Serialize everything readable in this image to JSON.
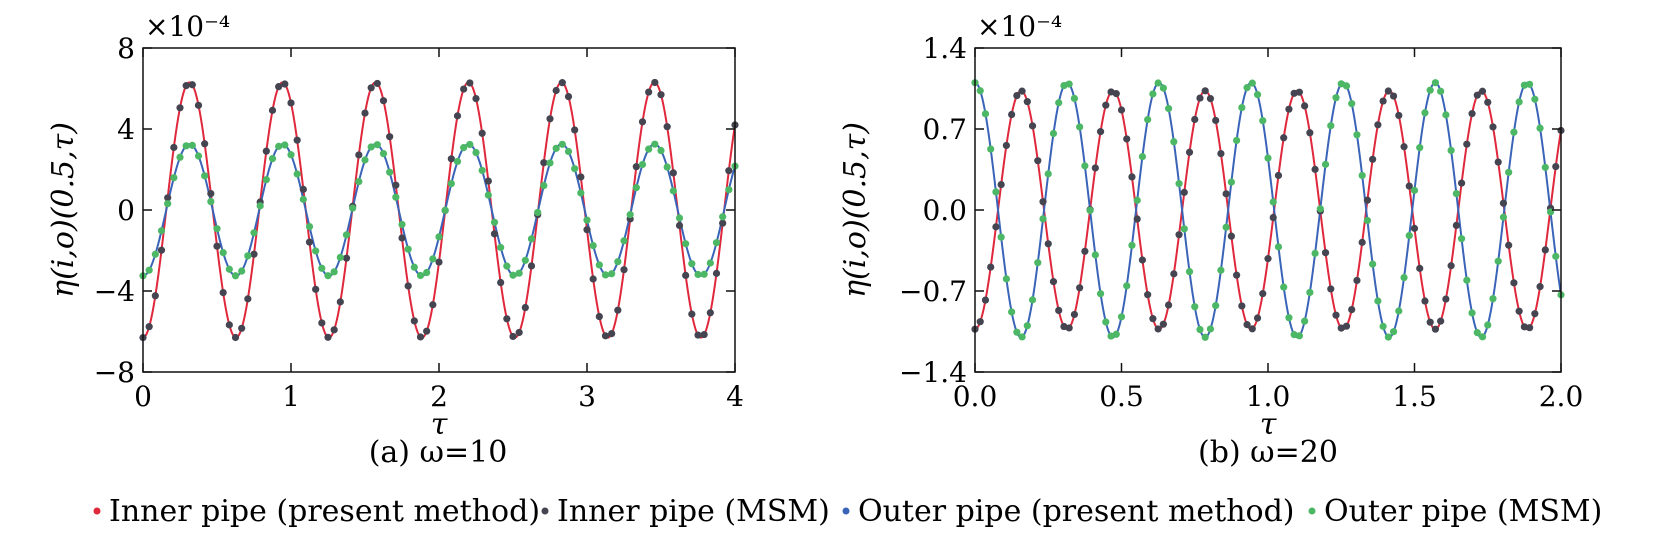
{
  "chart_data": [
    {
      "type": "line",
      "caption": "(a) ω=10",
      "xlabel": "τ",
      "ylabel": "η(i,o)(0.5,τ)",
      "y_multiplier": "×10⁻⁴",
      "xlim": [
        0,
        4
      ],
      "ylim": [
        -8,
        8
      ],
      "xticks": [
        0,
        1,
        2,
        3,
        4
      ],
      "xtick_labels": [
        "0",
        "1",
        "2",
        "3",
        "4"
      ],
      "yticks": [
        -8,
        -4,
        0,
        4,
        8
      ],
      "ytick_labels": [
        "−8",
        "−4",
        "0",
        "4",
        "8"
      ],
      "omega": 10,
      "series": [
        {
          "name": "Inner pipe (present method)",
          "kind": "line",
          "color": "#e0283c",
          "amplitude": 6.3,
          "phase": "-cos"
        },
        {
          "name": "Inner pipe (MSM)",
          "kind": "markers",
          "color": "#454552",
          "amplitude": 6.3,
          "phase": "-cos",
          "marker_count": 96
        },
        {
          "name": "Outer pipe (present method)",
          "kind": "line",
          "color": "#3a64b8",
          "amplitude": 3.25,
          "phase": "-cos"
        },
        {
          "name": "Outer pipe (MSM)",
          "kind": "markers",
          "color": "#4cb765",
          "amplitude": 3.25,
          "phase": "-cos",
          "marker_count": 96
        }
      ]
    },
    {
      "type": "line",
      "caption": "(b) ω=20",
      "xlabel": "τ",
      "ylabel": "η(i,o)(0.5,τ)",
      "y_multiplier": "×10⁻⁴",
      "xlim": [
        0,
        2
      ],
      "ylim": [
        -1.4,
        1.4
      ],
      "xticks": [
        0,
        0.5,
        1,
        1.5,
        2
      ],
      "xtick_labels": [
        "0.0",
        "0.5",
        "1.0",
        "1.5",
        "2.0"
      ],
      "yticks": [
        -1.4,
        -0.7,
        0,
        0.7,
        1.4
      ],
      "ytick_labels": [
        "−1.4",
        "−0.7",
        "0.0",
        "0.7",
        "1.4"
      ],
      "omega": 20,
      "series": [
        {
          "name": "Inner pipe (present method)",
          "kind": "line",
          "color": "#e0283c",
          "amplitude": 1.03,
          "phase": "-cos"
        },
        {
          "name": "Inner pipe (MSM)",
          "kind": "markers",
          "color": "#454552",
          "amplitude": 1.03,
          "phase": "-cos",
          "marker_count": 112
        },
        {
          "name": "Outer pipe (present method)",
          "kind": "line",
          "color": "#3a64b8",
          "amplitude": 1.1,
          "phase": "cos"
        },
        {
          "name": "Outer pipe (MSM)",
          "kind": "markers",
          "color": "#4cb765",
          "amplitude": 1.1,
          "phase": "cos",
          "marker_count": 112
        }
      ]
    }
  ],
  "legend": [
    {
      "label": "Inner pipe (present method)",
      "color": "#e0283c"
    },
    {
      "label": "Inner pipe (MSM)",
      "color": "#454552"
    },
    {
      "label": "Outer pipe (present method)",
      "color": "#3a64b8"
    },
    {
      "label": "Outer pipe (MSM)",
      "color": "#4cb765"
    }
  ]
}
